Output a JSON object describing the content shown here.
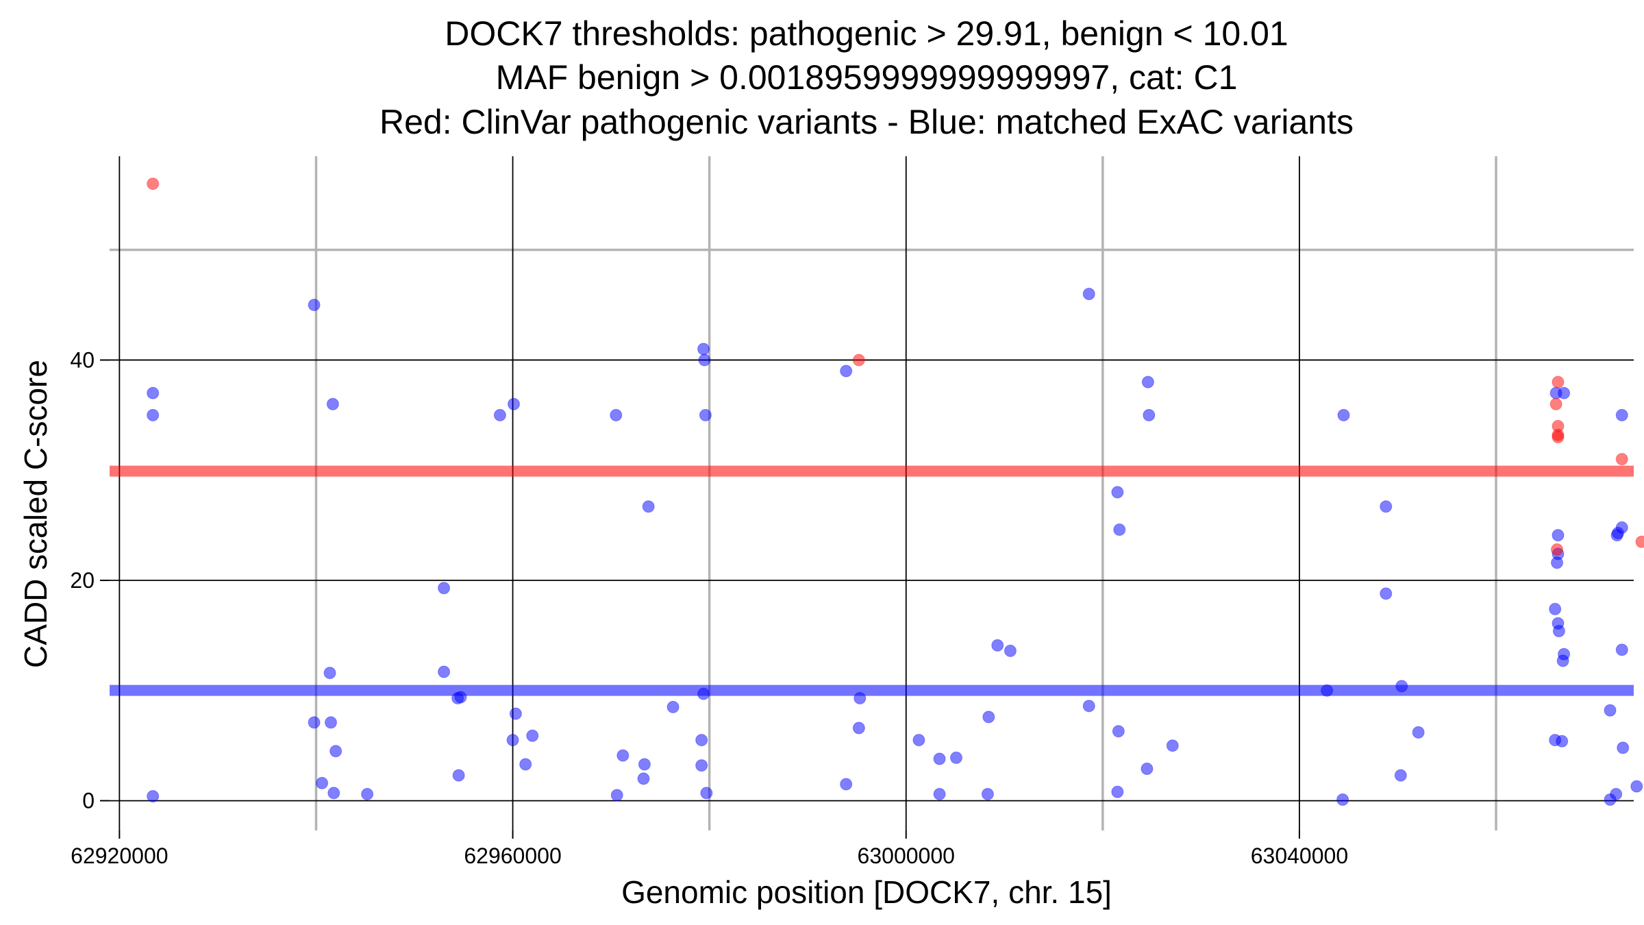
{
  "chart_data": {
    "type": "scatter",
    "title_lines": [
      "DOCK7 thresholds: pathogenic > 29.91, benign < 10.01",
      "MAF benign > 0.0018959999999999997, cat: C1",
      "Red: ClinVar pathogenic variants - Blue: matched ExAC variants"
    ],
    "xlabel": "Genomic position [DOCK7, chr. 15]",
    "ylabel": "CADD scaled C-score",
    "xlim": [
      62919000,
      63074000
    ],
    "ylim": [
      -2.7,
      58.5
    ],
    "x_ticks": [
      62920000,
      62960000,
      63000000,
      63040000
    ],
    "x_tick_labels": [
      "62920000",
      "62960000",
      "63000000",
      "63040000"
    ],
    "x_minor_grid": [
      62940000,
      62980000,
      63020000,
      63060000
    ],
    "y_ticks": [
      0,
      20,
      40
    ],
    "y_tick_labels": [
      "0",
      "20",
      "40"
    ],
    "y_minor_grid": [
      50
    ],
    "thresholds": [
      {
        "name": "pathogenic",
        "value": 29.91,
        "color": "#ff0000"
      },
      {
        "name": "benign",
        "value": 10.01,
        "color": "#0000ff"
      }
    ],
    "colors": {
      "pathogenic": "#ff0000",
      "benign": "#0000ff",
      "major_grid": "#000000",
      "minor_grid": "#b3b3b3"
    },
    "series": [
      {
        "name": "ClinVar pathogenic variants",
        "color": "#ff0000",
        "points": [
          [
            62923400,
            56
          ],
          [
            62995200,
            40
          ],
          [
            63066300,
            38
          ],
          [
            63066100,
            36
          ],
          [
            63066300,
            34
          ],
          [
            63066300,
            33.2
          ],
          [
            63066300,
            33
          ],
          [
            63072800,
            31
          ],
          [
            63066200,
            22.8
          ],
          [
            63074800,
            23.5
          ]
        ]
      },
      {
        "name": "matched ExAC variants",
        "color": "#0000ff",
        "points": [
          [
            62923400,
            37
          ],
          [
            62923400,
            35
          ],
          [
            62923400,
            0.4
          ],
          [
            62939800,
            45
          ],
          [
            62941700,
            36
          ],
          [
            62941400,
            11.6
          ],
          [
            62939800,
            7.1
          ],
          [
            62941500,
            7.1
          ],
          [
            62942000,
            4.5
          ],
          [
            62940600,
            1.6
          ],
          [
            62941800,
            0.7
          ],
          [
            62945200,
            0.6
          ],
          [
            62953000,
            19.3
          ],
          [
            62953000,
            11.7
          ],
          [
            62954400,
            9.3
          ],
          [
            62954700,
            9.4
          ],
          [
            62954500,
            2.3
          ],
          [
            62958700,
            35
          ],
          [
            62960100,
            36
          ],
          [
            62960300,
            7.9
          ],
          [
            62960000,
            5.5
          ],
          [
            62962000,
            5.9
          ],
          [
            62961300,
            3.3
          ],
          [
            62970500,
            35
          ],
          [
            62973800,
            26.7
          ],
          [
            62970600,
            0.5
          ],
          [
            62971200,
            4.1
          ],
          [
            62973400,
            3.3
          ],
          [
            62973300,
            2
          ],
          [
            62976300,
            8.5
          ],
          [
            62979400,
            41
          ],
          [
            62979500,
            40
          ],
          [
            62979600,
            35
          ],
          [
            62979400,
            9.7
          ],
          [
            62979200,
            5.5
          ],
          [
            62979200,
            3.2
          ],
          [
            62979700,
            0.7
          ],
          [
            62993900,
            39
          ],
          [
            62993900,
            1.5
          ],
          [
            62995200,
            6.6
          ],
          [
            62995300,
            9.3
          ],
          [
            63001300,
            5.5
          ],
          [
            63003400,
            3.8
          ],
          [
            63005100,
            3.9
          ],
          [
            63003400,
            0.6
          ],
          [
            63008400,
            7.6
          ],
          [
            63008300,
            0.6
          ],
          [
            63009300,
            14.1
          ],
          [
            63010600,
            13.6
          ],
          [
            63018600,
            46
          ],
          [
            63018600,
            8.6
          ],
          [
            63021500,
            28
          ],
          [
            63021700,
            24.6
          ],
          [
            63021600,
            6.3
          ],
          [
            63021500,
            0.8
          ],
          [
            63024600,
            38
          ],
          [
            63024700,
            35
          ],
          [
            63024500,
            2.9
          ],
          [
            63027100,
            5.0
          ],
          [
            63042800,
            10
          ],
          [
            63044500,
            35
          ],
          [
            63044400,
            0.1
          ],
          [
            63048800,
            26.7
          ],
          [
            63048800,
            18.8
          ],
          [
            63050400,
            10.4
          ],
          [
            63050300,
            2.3
          ],
          [
            63052100,
            6.2
          ],
          [
            63066100,
            37
          ],
          [
            63066900,
            37
          ],
          [
            63066300,
            24.1
          ],
          [
            63066300,
            22.4
          ],
          [
            63066200,
            21.6
          ],
          [
            63066000,
            17.4
          ],
          [
            63066300,
            16.1
          ],
          [
            63066400,
            15.4
          ],
          [
            63066900,
            13.3
          ],
          [
            63066800,
            12.7
          ],
          [
            63066000,
            5.5
          ],
          [
            63066700,
            5.4
          ],
          [
            63072800,
            35
          ],
          [
            63072800,
            24.8
          ],
          [
            63072400,
            24.3
          ],
          [
            63072300,
            24.1
          ],
          [
            63072800,
            13.7
          ],
          [
            63071600,
            8.2
          ],
          [
            63072900,
            4.8
          ],
          [
            63072200,
            0.6
          ],
          [
            63071600,
            0.1
          ],
          [
            63074300,
            1.3
          ]
        ]
      }
    ]
  }
}
